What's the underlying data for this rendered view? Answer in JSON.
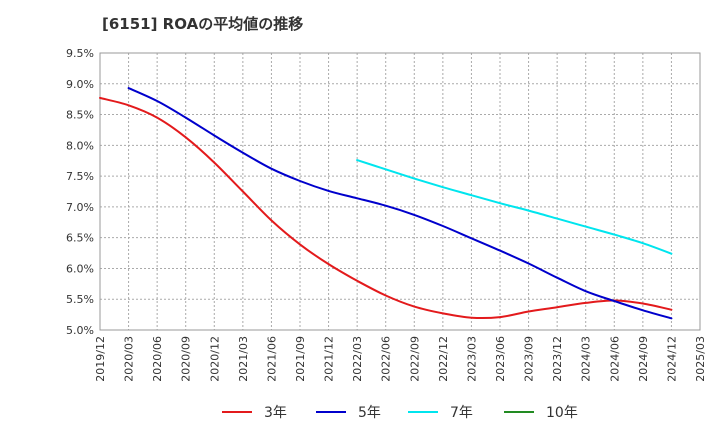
{
  "chart_data": {
    "type": "line",
    "title": "[6151]  ROAの平均値の推移",
    "xlabel": "",
    "ylabel": "",
    "ylim": [
      5.0,
      9.5
    ],
    "y_ticks": [
      "9.5%",
      "9.0%",
      "8.5%",
      "8.0%",
      "7.5%",
      "7.0%",
      "6.5%",
      "6.0%",
      "5.5%",
      "5.0%"
    ],
    "x_ticks": [
      "2019/12",
      "2020/03",
      "2020/06",
      "2020/09",
      "2020/12",
      "2021/03",
      "2021/06",
      "2021/09",
      "2021/12",
      "2022/03",
      "2022/06",
      "2022/09",
      "2022/12",
      "2023/03",
      "2023/06",
      "2023/09",
      "2023/12",
      "2024/03",
      "2024/06",
      "2024/09",
      "2024/12",
      "2025/03"
    ],
    "grid": true,
    "legend_position": "bottom",
    "series": [
      {
        "name": "3年",
        "color": "#e31a1c",
        "start_index": 0,
        "values": [
          8.77,
          8.65,
          8.45,
          8.13,
          7.72,
          7.25,
          6.78,
          6.39,
          6.07,
          5.8,
          5.56,
          5.38,
          5.27,
          5.2,
          5.21,
          5.3,
          5.37,
          5.44,
          5.48,
          5.43,
          5.33
        ]
      },
      {
        "name": "5年",
        "color": "#0000cc",
        "start_index": 1,
        "values": [
          8.93,
          8.72,
          8.45,
          8.16,
          7.88,
          7.62,
          7.42,
          7.26,
          7.14,
          7.02,
          6.87,
          6.69,
          6.49,
          6.29,
          6.08,
          5.85,
          5.63,
          5.47,
          5.32,
          5.19
        ]
      },
      {
        "name": "7年",
        "color": "#00e5ee",
        "start_index": 9,
        "values": [
          7.76,
          7.61,
          7.46,
          7.32,
          7.19,
          7.06,
          6.94,
          6.81,
          6.68,
          6.55,
          6.41,
          6.24
        ]
      },
      {
        "name": "10年",
        "color": "#228b22",
        "start_index": 0,
        "values": []
      }
    ]
  }
}
